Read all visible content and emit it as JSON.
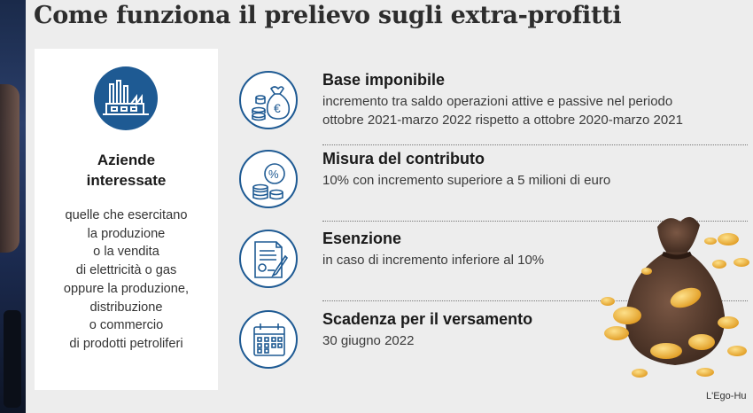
{
  "title": "Come funziona il prelievo sugli extra-profitti",
  "sidebar": {
    "heading": [
      "Aziende",
      "interessate"
    ],
    "lines": [
      "quelle che esercitano",
      "la produzione",
      "o la vendita",
      "di elettricità o gas",
      "oppure la produzione,",
      "distribuzione",
      "o commercio",
      "di prodotti petroliferi"
    ]
  },
  "items": [
    {
      "icon": "money-bag-euro-icon",
      "title": "Base imponibile",
      "lines": [
        "incremento tra saldo operazioni attive e passive nel periodo",
        "ottobre 2021-marzo 2022 rispetto a  ottobre 2020-marzo 2021"
      ]
    },
    {
      "icon": "percent-coins-icon",
      "title": "Misura del contributo",
      "lines": [
        "10% con incremento superiore a 5 milioni di euro"
      ]
    },
    {
      "icon": "document-pen-icon",
      "title": "Esenzione",
      "lines": [
        "in caso di incremento inferiore al 10%"
      ]
    },
    {
      "icon": "calendar-icon",
      "title": "Scadenza per il versamento",
      "lines": [
        "30 giugno 2022"
      ]
    }
  ],
  "credit": "L'Ego-Hu",
  "colors": {
    "accent": "#1e5a93",
    "coin": "#f2b136"
  }
}
